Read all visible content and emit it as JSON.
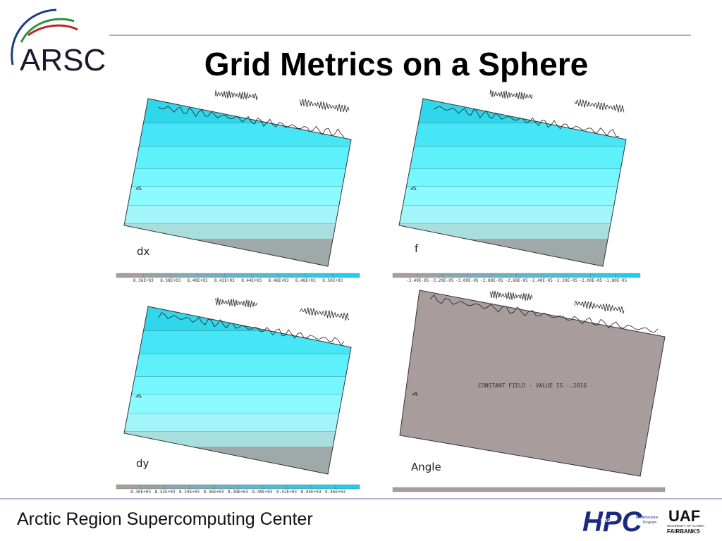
{
  "header": {
    "logo": "ARSC",
    "title": "Grid Metrics on a Sphere"
  },
  "panels": [
    {
      "label": "dx",
      "colorbar": [
        "8.36E+03",
        "8.38E+03",
        "8.40E+03",
        "8.42E+03",
        "8.44E+03",
        "8.46E+03",
        "8.48E+03",
        "8.50E+03"
      ]
    },
    {
      "label": "f",
      "colorbar": [
        "-3.40E-05",
        "-3.20E-05",
        "-3.00E-05",
        "-2.80E-05",
        "-2.60E-05",
        "-2.40E-05",
        "-2.20E-05",
        "-2.00E-05",
        "-1.80E-05"
      ]
    },
    {
      "label": "dy",
      "colorbar": [
        "8.30E+03",
        "8.32E+03",
        "8.34E+03",
        "8.36E+03",
        "8.38E+03",
        "8.40E+03",
        "8.42E+03",
        "8.44E+03",
        "8.46E+03"
      ]
    },
    {
      "label": "Angle",
      "note": "CONSTANT FIELD - VALUE IS -.2016"
    }
  ],
  "footer": {
    "text": "Arctic Region Supercomputing Center",
    "hpc": "HPC",
    "dod": "DoD",
    "program1": "Modernization",
    "program2": "Program",
    "uaf": "UAF",
    "university": "UNIVERSITY OF ALASKA",
    "fairbanks": "FAIRBANKS"
  }
}
